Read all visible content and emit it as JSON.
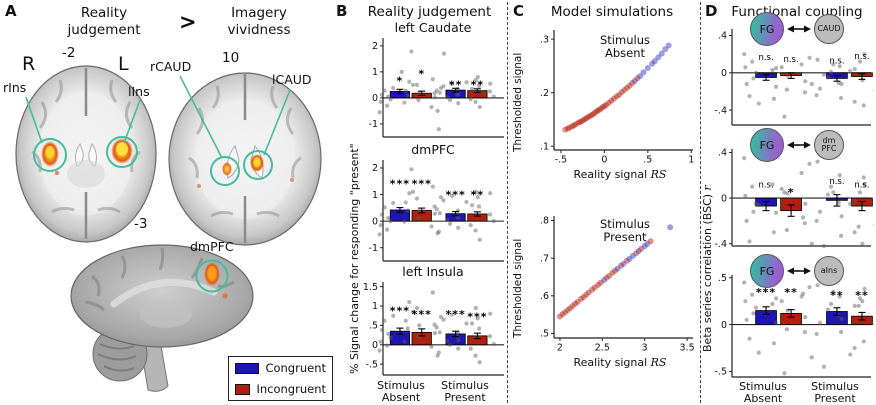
{
  "panels": {
    "A": {
      "label": "A",
      "title_left": "Reality\njudgement",
      "gt": ">",
      "title_right": "Imagery\nvividness",
      "hemi_left": "R",
      "hemi_right": "L",
      "slice1_coord": "-2",
      "slice2_coord": "10",
      "slice3_coord": "-3",
      "ann_rIns": "rIns",
      "ann_lIns": "lIns",
      "ann_rCAUD": "rCAUD",
      "ann_lCAUD": "lCAUD",
      "ann_dmPFC": "dmPFC",
      "legend": {
        "congruent": "Congruent",
        "incongruent": "Incongruent"
      }
    },
    "B": {
      "label": "B",
      "title": "Reality judgement",
      "ylabel": "% Signal change  for responding \"present\"",
      "xlabel_group1": "Stimulus\nAbsent",
      "xlabel_group2": "Stimulus\nPresent"
    },
    "C": {
      "label": "C",
      "title": "Model simulations"
    },
    "D": {
      "label": "D",
      "title": "Functional coupling",
      "ylabel": "Beta series correlation (BSC) ",
      "ylabel_var": "r",
      "node_fg": "FG",
      "xlabel_group1": "Stimulus\nAbsent",
      "xlabel_group2": "Stimulus\nPresent"
    }
  },
  "colors": {
    "congruent": "#1e15b2",
    "incongruent": "#b0200e",
    "annotation_teal": "#45bd9b",
    "scatter_red": "#b5271a",
    "scatter_blue": "#3c3cc0",
    "fg_teal": "#3fb3a5",
    "fg_purple": "#9a5fd0",
    "node_gray": "#bcbcbc",
    "activation_orange": "#f07010",
    "activation_yellow": "#ffe23c"
  },
  "chart_data": [
    {
      "id": "b1",
      "type": "bar",
      "title": "left Caudate",
      "categories": [
        "Congruent Absent",
        "Incongruent Absent",
        "Congruent Present",
        "Incongruent Present"
      ],
      "values": [
        0.25,
        0.18,
        0.3,
        0.28
      ],
      "errors": [
        0.08,
        0.08,
        0.07,
        0.07
      ],
      "sig": [
        "*",
        "*",
        "**",
        "**"
      ],
      "sig_y": [
        0.75,
        1.02,
        0.6,
        0.6
      ],
      "yticks": [
        2,
        1,
        0,
        -1
      ],
      "ytick_labels": [
        "2",
        "1",
        "0",
        "-1"
      ],
      "ylim": [
        -1.5,
        2.3
      ],
      "bar_fracs": [
        0.06,
        0.24,
        0.52,
        0.7
      ],
      "bar_w": 0.16,
      "points": [
        [
          -0.55,
          -0.3,
          -0.15,
          -0.05,
          0.05,
          0.12,
          0.2,
          0.28,
          0.38,
          0.5,
          0.62,
          1.78
        ],
        [
          -1.2,
          -0.35,
          -0.18,
          -0.08,
          0.02,
          0.1,
          0.18,
          0.27,
          0.38,
          0.5,
          0.72,
          1.0
        ],
        [
          -0.5,
          -0.2,
          -0.08,
          0.02,
          0.12,
          0.2,
          0.28,
          0.35,
          0.45,
          0.55,
          0.68,
          1.7
        ],
        [
          -0.35,
          -0.15,
          -0.05,
          0.05,
          0.15,
          0.25,
          0.35,
          0.45,
          0.6,
          0.8,
          0.55
        ]
      ]
    },
    {
      "id": "b2",
      "type": "bar",
      "title": "dmPFC",
      "categories": [
        "Congruent Absent",
        "Incongruent Absent",
        "Congruent Present",
        "Incongruent Present"
      ],
      "values": [
        0.42,
        0.4,
        0.28,
        0.27
      ],
      "errors": [
        0.09,
        0.09,
        0.08,
        0.08
      ],
      "sig": [
        "***",
        "***",
        "***",
        "**"
      ],
      "sig_y": [
        1.5,
        1.5,
        1.08,
        1.08
      ],
      "yticks": [
        2,
        1,
        0,
        -1
      ],
      "ytick_labels": [
        "2",
        "1",
        "0",
        "-1"
      ],
      "ylim": [
        -1.5,
        2.3
      ],
      "bar_fracs": [
        0.06,
        0.24,
        0.52,
        0.7
      ],
      "bar_w": 0.16,
      "points": [
        [
          -0.5,
          -0.32,
          -0.15,
          0,
          0.12,
          0.25,
          0.38,
          0.52,
          0.68,
          0.85,
          1.05,
          1.95
        ],
        [
          -0.4,
          -0.2,
          -0.02,
          0.12,
          0.28,
          0.4,
          0.55,
          0.7,
          0.9,
          1.1,
          1.3
        ],
        [
          -0.45,
          -0.25,
          -0.1,
          0.05,
          0.18,
          0.3,
          0.45,
          0.6,
          0.78,
          0.95,
          1.1
        ],
        [
          -0.7,
          -0.35,
          -0.15,
          0,
          0.12,
          0.25,
          0.4,
          0.55,
          0.72,
          0.9,
          1.05
        ]
      ]
    },
    {
      "id": "b3",
      "type": "bar",
      "title": "left Insula",
      "categories": [
        "Congruent Absent",
        "Incongruent Absent",
        "Congruent Present",
        "Incongruent Present"
      ],
      "values": [
        0.35,
        0.32,
        0.28,
        0.23
      ],
      "errors": [
        0.08,
        0.09,
        0.07,
        0.07
      ],
      "sig": [
        "***",
        "***",
        "***",
        "***"
      ],
      "sig_y": [
        0.93,
        0.85,
        0.85,
        0.78
      ],
      "yticks": [
        1.5,
        1,
        0.5,
        0,
        -0.5
      ],
      "ytick_labels": [
        "1.5",
        "1",
        ".5",
        "0",
        "-.5"
      ],
      "ylim": [
        -0.78,
        1.62
      ],
      "bar_fracs": [
        0.06,
        0.24,
        0.52,
        0.7
      ],
      "bar_w": 0.16,
      "points": [
        [
          -0.15,
          -0.02,
          0.08,
          0.18,
          0.28,
          0.38,
          0.5,
          0.62,
          0.75,
          0.95,
          1.1
        ],
        [
          -0.2,
          -0.05,
          0.08,
          0.2,
          0.3,
          0.42,
          0.52,
          0.62,
          0.72,
          0.85,
          1.35
        ],
        [
          -0.28,
          -0.1,
          0,
          0.1,
          0.22,
          0.32,
          0.45,
          0.55,
          0.65,
          0.78,
          0.95
        ],
        [
          -0.45,
          -0.28,
          -0.1,
          0.02,
          0.12,
          0.22,
          0.32,
          0.42,
          0.55,
          0.68,
          0.8
        ]
      ]
    },
    {
      "id": "c1",
      "type": "scatter",
      "subtitle": "Stimulus\nAbsent",
      "ylabel": "Thresholded signal",
      "xlabel": "Reality signal ",
      "xlabel_var": "RS",
      "xticks": [
        -0.5,
        0,
        0.5,
        1
      ],
      "xtick_labels": [
        "-.5",
        "0",
        ".5",
        "1"
      ],
      "xlim": [
        -0.58,
        1.02
      ],
      "yticks": [
        0.3,
        0.2,
        0.1
      ],
      "ytick_labels": [
        ".3",
        ".2",
        ".1"
      ],
      "ylim": [
        0.093,
        0.317
      ],
      "x": [
        -0.45,
        -0.42,
        -0.4,
        -0.37,
        -0.35,
        -0.33,
        -0.3,
        -0.28,
        -0.26,
        -0.24,
        -0.22,
        -0.2,
        -0.18,
        -0.16,
        -0.14,
        -0.12,
        -0.1,
        -0.08,
        -0.06,
        -0.04,
        -0.02,
        0.0,
        0.02,
        0.05,
        0.08,
        0.11,
        0.14,
        0.17,
        0.2,
        0.23,
        0.26,
        0.29,
        0.32,
        0.35,
        0.38,
        0.41,
        0.45,
        0.5,
        0.55,
        0.58,
        0.62,
        0.66,
        0.7,
        0.74
      ],
      "y": [
        0.131,
        0.133,
        0.135,
        0.137,
        0.139,
        0.141,
        0.144,
        0.145,
        0.147,
        0.149,
        0.151,
        0.153,
        0.155,
        0.157,
        0.159,
        0.161,
        0.164,
        0.166,
        0.168,
        0.17,
        0.173,
        0.175,
        0.177,
        0.181,
        0.185,
        0.189,
        0.193,
        0.196,
        0.201,
        0.205,
        0.209,
        0.213,
        0.218,
        0.222,
        0.227,
        0.231,
        0.238,
        0.246,
        0.254,
        0.259,
        0.266,
        0.273,
        0.281,
        0.288
      ],
      "c": [
        "R",
        "R",
        "R",
        "R",
        "R",
        "R",
        "R",
        "R",
        "R",
        "R",
        "R",
        "R",
        "R",
        "R",
        "R",
        "R",
        "R",
        "R",
        "R",
        "R",
        "R",
        "R",
        "R",
        "R",
        "R",
        "R",
        "R",
        "R",
        "R",
        "R",
        "R",
        "R",
        "R",
        "B",
        "R",
        "B",
        "B",
        "B",
        "B",
        "B",
        "B",
        "B",
        "B",
        "B"
      ]
    },
    {
      "id": "c2",
      "type": "scatter",
      "subtitle": "Stimulus\nPresent",
      "ylabel": "Thresholded signal",
      "xlabel": "Reality signal ",
      "xlabel_var": "RS",
      "xticks": [
        2,
        2.5,
        3,
        3.5
      ],
      "xtick_labels": [
        "2",
        "2.5",
        "3",
        "3.5"
      ],
      "xlim": [
        1.93,
        3.57
      ],
      "yticks": [
        0.8,
        0.7,
        0.6,
        0.5
      ],
      "ytick_labels": [
        ".8",
        ".7",
        ".6",
        ".5"
      ],
      "ylim": [
        0.488,
        0.812
      ],
      "x": [
        2.0,
        2.03,
        2.06,
        2.09,
        2.12,
        2.15,
        2.18,
        2.21,
        2.25,
        2.28,
        2.31,
        2.34,
        2.38,
        2.41,
        2.45,
        2.48,
        2.52,
        2.55,
        2.58,
        2.62,
        2.65,
        2.68,
        2.72,
        2.75,
        2.79,
        2.82,
        2.86,
        2.9,
        2.93,
        2.96,
        3.0,
        3.03,
        3.07,
        3.3
      ],
      "y": [
        0.545,
        0.551,
        0.556,
        0.562,
        0.567,
        0.573,
        0.579,
        0.584,
        0.592,
        0.597,
        0.603,
        0.609,
        0.616,
        0.622,
        0.629,
        0.635,
        0.642,
        0.648,
        0.653,
        0.661,
        0.667,
        0.672,
        0.68,
        0.685,
        0.693,
        0.698,
        0.706,
        0.713,
        0.719,
        0.725,
        0.732,
        0.738,
        0.745,
        0.782
      ],
      "c": [
        "R",
        "R",
        "R",
        "R",
        "R",
        "R",
        "R",
        "R",
        "R",
        "R",
        "R",
        "R",
        "R",
        "R",
        "R",
        "R",
        "B",
        "R",
        "R",
        "R",
        "R",
        "B",
        "R",
        "B",
        "R",
        "B",
        "B",
        "R",
        "B",
        "R",
        "B",
        "B",
        "R",
        "B"
      ]
    },
    {
      "id": "d1",
      "type": "bar",
      "node": "CAUD",
      "categories": [
        "Congruent Absent",
        "Incongruent Absent",
        "Congruent Present",
        "Incongruent Present"
      ],
      "values": [
        -0.05,
        -0.03,
        -0.06,
        -0.04
      ],
      "errors": [
        0.03,
        0.03,
        0.03,
        0.03
      ],
      "sig": [
        "n.s.",
        "n.s.",
        "n.s.",
        "n.s."
      ],
      "sig_y": [
        0.17,
        0.15,
        0.13,
        0.18
      ],
      "yticks": [
        0.4,
        0,
        -0.4
      ],
      "ytick_labels": [
        ".4",
        "0",
        "-.4"
      ],
      "ylim": [
        -0.56,
        0.47
      ],
      "bar_fracs": [
        0.17,
        0.35,
        0.68,
        0.86
      ],
      "bar_w": 0.15,
      "points": [
        [
          0.2,
          0.12,
          0.06,
          0,
          -0.06,
          -0.12,
          -0.18,
          -0.25,
          -0.33,
          -0.47,
          0.05
        ],
        [
          0.16,
          0.09,
          0.03,
          -0.03,
          -0.09,
          -0.15,
          -0.21,
          -0.28,
          -0.12,
          0.06
        ],
        [
          0.14,
          0.07,
          0.01,
          -0.05,
          -0.11,
          -0.17,
          -0.24,
          -0.31,
          -0.02,
          0.09
        ],
        [
          0.2,
          0.12,
          0.04,
          -0.04,
          -0.12,
          -0.19,
          -0.27,
          -0.35,
          0.02,
          -0.08
        ]
      ]
    },
    {
      "id": "d2",
      "type": "bar",
      "node": "dm\nPFC",
      "categories": [
        "Congruent Absent",
        "Incongruent Absent",
        "Congruent Present",
        "Incongruent Present"
      ],
      "values": [
        -0.07,
        -0.11,
        -0.02,
        -0.07
      ],
      "errors": [
        0.04,
        0.05,
        0.05,
        0.04
      ],
      "sig": [
        "n.s.",
        "*",
        "n.s.",
        "n.s."
      ],
      "sig_y": [
        0.12,
        0.07,
        0.15,
        0.12
      ],
      "yticks": [
        0.4,
        0,
        -0.4
      ],
      "ytick_labels": [
        ".4",
        "0",
        "-.4"
      ],
      "ylim": [
        -0.42,
        0.43
      ],
      "bar_fracs": [
        0.17,
        0.35,
        0.68,
        0.86
      ],
      "bar_w": 0.15,
      "points": [
        [
          0.35,
          0.1,
          0.02,
          -0.05,
          -0.12,
          -0.2,
          -0.28,
          -0.38,
          -0.06,
          0.05
        ],
        [
          0.3,
          0.22,
          0.12,
          0.04,
          -0.05,
          -0.13,
          -0.22,
          -0.3,
          -0.4,
          0.08,
          -0.17
        ],
        [
          0.32,
          0.2,
          0.1,
          0.03,
          -0.04,
          -0.12,
          -0.2,
          -0.3,
          -0.42,
          0.05,
          -0.25
        ],
        [
          0.12,
          0.05,
          -0.02,
          -0.09,
          -0.16,
          -0.24,
          -0.33,
          0.18,
          -0.05,
          -0.4
        ]
      ]
    },
    {
      "id": "d3",
      "type": "bar",
      "node": "aIns",
      "categories": [
        "Congruent Absent",
        "Incongruent Absent",
        "Congruent Present",
        "Incongruent Present"
      ],
      "values": [
        0.15,
        0.12,
        0.14,
        0.09
      ],
      "errors": [
        0.04,
        0.04,
        0.04,
        0.04
      ],
      "sig": [
        "***",
        "**",
        "**",
        "**"
      ],
      "sig_y": [
        0.37,
        0.37,
        0.34,
        0.34
      ],
      "yticks": [
        0.5,
        0,
        -0.5
      ],
      "ytick_labels": [
        ".5",
        "0",
        "-.5"
      ],
      "ylim": [
        -0.56,
        0.53
      ],
      "bar_fracs": [
        0.17,
        0.35,
        0.68,
        0.86
      ],
      "bar_w": 0.15,
      "points": [
        [
          0.45,
          0.32,
          0.25,
          0.18,
          0.12,
          0.05,
          -0.05,
          -0.15,
          -0.3,
          -0.52,
          0.28
        ],
        [
          0.4,
          0.3,
          0.22,
          0.15,
          0.08,
          0.02,
          -0.08,
          -0.2,
          -0.35,
          0.25,
          0.33
        ],
        [
          0.42,
          0.3,
          0.22,
          0.16,
          0.1,
          0.02,
          -0.1,
          -0.25,
          -0.45,
          0.35,
          0.2
        ],
        [
          0.38,
          0.28,
          0.2,
          0.12,
          0.06,
          0,
          -0.08,
          -0.18,
          -0.32,
          0.25,
          0.15
        ]
      ]
    }
  ]
}
